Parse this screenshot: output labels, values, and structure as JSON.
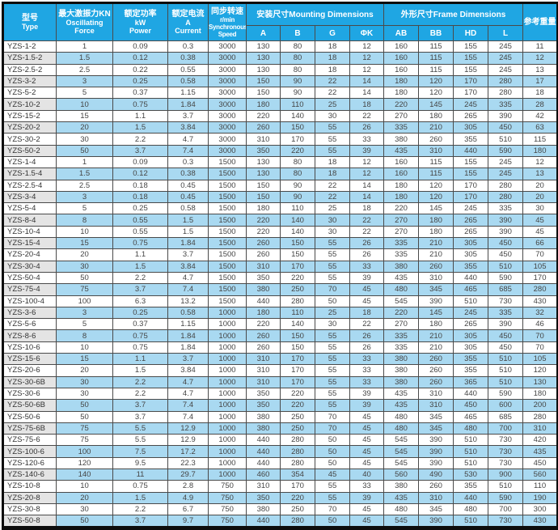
{
  "colors": {
    "header_blue": "#1FA6E3",
    "alt_row_blue": "#A9D9F1",
    "alt_type_gray": "#E4E4E4",
    "grid_line": "#4a4a4a"
  },
  "header": {
    "type": {
      "zh": "型号",
      "en": "Type"
    },
    "force": {
      "zh": "最大激振力KN",
      "en": "Oscillating",
      "en2": "Force"
    },
    "power": {
      "zh": "额定功率",
      "en": "kW",
      "en2": "Power"
    },
    "current": {
      "zh": "额定电流",
      "en": "A",
      "en2": "Current"
    },
    "speed": {
      "zh": "同步转速",
      "en": "r/min",
      "en2": "Synchronous",
      "en3": "Speed"
    },
    "mounting": "安装尺寸Mounting Dimensions",
    "frame": "外形尺寸Frame Dimensions",
    "weight": "参考重量",
    "dims": [
      "A",
      "B",
      "G",
      "ΦK",
      "AB",
      "BB",
      "HD",
      "L"
    ]
  },
  "rows": [
    [
      "YZS-1-2",
      "1",
      "0.09",
      "0.3",
      "3000",
      "130",
      "80",
      "18",
      "12",
      "160",
      "115",
      "155",
      "245",
      "11"
    ],
    [
      "YZS-1.5-2",
      "1.5",
      "0.12",
      "0.38",
      "3000",
      "130",
      "80",
      "18",
      "12",
      "160",
      "115",
      "155",
      "245",
      "12"
    ],
    [
      "YZS-2.5-2",
      "2.5",
      "0.22",
      "0.55",
      "3000",
      "130",
      "80",
      "18",
      "12",
      "160",
      "115",
      "155",
      "245",
      "13"
    ],
    [
      "YZS-3-2",
      "3",
      "0.25",
      "0.58",
      "3000",
      "150",
      "90",
      "22",
      "14",
      "180",
      "120",
      "170",
      "280",
      "17"
    ],
    [
      "YZS-5-2",
      "5",
      "0.37",
      "1.15",
      "3000",
      "150",
      "90",
      "22",
      "14",
      "180",
      "120",
      "170",
      "280",
      "18"
    ],
    [
      "YZS-10-2",
      "10",
      "0.75",
      "1.84",
      "3000",
      "180",
      "110",
      "25",
      "18",
      "220",
      "145",
      "245",
      "335",
      "28"
    ],
    [
      "YZS-15-2",
      "15",
      "1.1",
      "3.7",
      "3000",
      "220",
      "140",
      "30",
      "22",
      "270",
      "180",
      "265",
      "390",
      "42"
    ],
    [
      "YZS-20-2",
      "20",
      "1.5",
      "3.84",
      "3000",
      "260",
      "150",
      "55",
      "26",
      "335",
      "210",
      "305",
      "450",
      "63"
    ],
    [
      "YZS-30-2",
      "30",
      "2.2",
      "4.7",
      "3000",
      "310",
      "170",
      "55",
      "33",
      "380",
      "260",
      "355",
      "510",
      "115"
    ],
    [
      "YZS-50-2",
      "50",
      "3.7",
      "7.4",
      "3000",
      "350",
      "220",
      "55",
      "39",
      "435",
      "310",
      "440",
      "590",
      "180"
    ],
    [
      "YZS-1-4",
      "1",
      "0.09",
      "0.3",
      "1500",
      "130",
      "80",
      "18",
      "12",
      "160",
      "115",
      "155",
      "245",
      "12"
    ],
    [
      "YZS-1.5-4",
      "1.5",
      "0.12",
      "0.38",
      "1500",
      "130",
      "80",
      "18",
      "12",
      "160",
      "115",
      "155",
      "245",
      "13"
    ],
    [
      "YZS-2.5-4",
      "2.5",
      "0.18",
      "0.45",
      "1500",
      "150",
      "90",
      "22",
      "14",
      "180",
      "120",
      "170",
      "280",
      "20"
    ],
    [
      "YZS-3-4",
      "3",
      "0.18",
      "0.45",
      "1500",
      "150",
      "90",
      "22",
      "14",
      "180",
      "120",
      "170",
      "280",
      "20"
    ],
    [
      "YZS-5-4",
      "5",
      "0.25",
      "0.58",
      "1500",
      "180",
      "110",
      "25",
      "18",
      "220",
      "145",
      "245",
      "335",
      "30"
    ],
    [
      "YZS-8-4",
      "8",
      "0.55",
      "1.5",
      "1500",
      "220",
      "140",
      "30",
      "22",
      "270",
      "180",
      "265",
      "390",
      "45"
    ],
    [
      "YZS-10-4",
      "10",
      "0.55",
      "1.5",
      "1500",
      "220",
      "140",
      "30",
      "22",
      "270",
      "180",
      "265",
      "390",
      "45"
    ],
    [
      "YZS-15-4",
      "15",
      "0.75",
      "1.84",
      "1500",
      "260",
      "150",
      "55",
      "26",
      "335",
      "210",
      "305",
      "450",
      "66"
    ],
    [
      "YZS-20-4",
      "20",
      "1.1",
      "3.7",
      "1500",
      "260",
      "150",
      "55",
      "26",
      "335",
      "210",
      "305",
      "450",
      "70"
    ],
    [
      "YZS-30-4",
      "30",
      "1.5",
      "3.84",
      "1500",
      "310",
      "170",
      "55",
      "33",
      "380",
      "260",
      "355",
      "510",
      "105"
    ],
    [
      "YZS-50-4",
      "50",
      "2.2",
      "4.7",
      "1500",
      "350",
      "220",
      "55",
      "39",
      "435",
      "310",
      "440",
      "590",
      "170"
    ],
    [
      "YZS-75-4",
      "75",
      "3.7",
      "7.4",
      "1500",
      "380",
      "250",
      "70",
      "45",
      "480",
      "345",
      "465",
      "685",
      "280"
    ],
    [
      "YZS-100-4",
      "100",
      "6.3",
      "13.2",
      "1500",
      "440",
      "280",
      "50",
      "45",
      "545",
      "390",
      "510",
      "730",
      "430"
    ],
    [
      "YZS-3-6",
      "3",
      "0.25",
      "0.58",
      "1000",
      "180",
      "110",
      "25",
      "18",
      "220",
      "145",
      "245",
      "335",
      "32"
    ],
    [
      "YZS-5-6",
      "5",
      "0.37",
      "1.15",
      "1000",
      "220",
      "140",
      "30",
      "22",
      "270",
      "180",
      "265",
      "390",
      "46"
    ],
    [
      "YZS-8-6",
      "8",
      "0.75",
      "1.84",
      "1000",
      "260",
      "150",
      "55",
      "26",
      "335",
      "210",
      "305",
      "450",
      "70"
    ],
    [
      "YZS-10-6",
      "10",
      "0.75",
      "1.84",
      "1000",
      "260",
      "150",
      "55",
      "26",
      "335",
      "210",
      "305",
      "450",
      "70"
    ],
    [
      "YZS-15-6",
      "15",
      "1.1",
      "3.7",
      "1000",
      "310",
      "170",
      "55",
      "33",
      "380",
      "260",
      "355",
      "510",
      "105"
    ],
    [
      "YZS-20-6",
      "20",
      "1.5",
      "3.84",
      "1000",
      "310",
      "170",
      "55",
      "33",
      "380",
      "260",
      "355",
      "510",
      "120"
    ],
    [
      "YZS-30-6B",
      "30",
      "2.2",
      "4.7",
      "1000",
      "310",
      "170",
      "55",
      "33",
      "380",
      "260",
      "365",
      "510",
      "130"
    ],
    [
      "YZS-30-6",
      "30",
      "2.2",
      "4.7",
      "1000",
      "350",
      "220",
      "55",
      "39",
      "435",
      "310",
      "440",
      "590",
      "180"
    ],
    [
      "YZS-50-6B",
      "50",
      "3.7",
      "7.4",
      "1000",
      "350",
      "220",
      "55",
      "39",
      "435",
      "310",
      "450",
      "600",
      "200"
    ],
    [
      "YZS-50-6",
      "50",
      "3.7",
      "7.4",
      "1000",
      "380",
      "250",
      "70",
      "45",
      "480",
      "345",
      "465",
      "685",
      "280"
    ],
    [
      "YZS-75-6B",
      "75",
      "5.5",
      "12.9",
      "1000",
      "380",
      "250",
      "70",
      "45",
      "480",
      "345",
      "480",
      "700",
      "310"
    ],
    [
      "YZS-75-6",
      "75",
      "5.5",
      "12.9",
      "1000",
      "440",
      "280",
      "50",
      "45",
      "545",
      "390",
      "510",
      "730",
      "420"
    ],
    [
      "YZS-100-6",
      "100",
      "7.5",
      "17.2",
      "1000",
      "440",
      "280",
      "50",
      "45",
      "545",
      "390",
      "510",
      "730",
      "435"
    ],
    [
      "YZS-120-6",
      "120",
      "9.5",
      "22.3",
      "1000",
      "440",
      "280",
      "50",
      "45",
      "545",
      "390",
      "510",
      "730",
      "450"
    ],
    [
      "YZS-140-6",
      "140",
      "11",
      "29.7",
      "1000",
      "460",
      "354",
      "45",
      "40",
      "560",
      "490",
      "530",
      "900",
      "560"
    ],
    [
      "YZS-10-8",
      "10",
      "0.75",
      "2.8",
      "750",
      "310",
      "170",
      "55",
      "33",
      "380",
      "260",
      "355",
      "510",
      "110"
    ],
    [
      "YZS-20-8",
      "20",
      "1.5",
      "4.9",
      "750",
      "350",
      "220",
      "55",
      "39",
      "435",
      "310",
      "440",
      "590",
      "190"
    ],
    [
      "YZS-30-8",
      "30",
      "2.2",
      "6.7",
      "750",
      "380",
      "250",
      "70",
      "45",
      "480",
      "345",
      "480",
      "700",
      "300"
    ],
    [
      "YZS-50-8",
      "50",
      "3.7",
      "9.7",
      "750",
      "440",
      "280",
      "50",
      "45",
      "545",
      "390",
      "510",
      "730",
      "430"
    ]
  ]
}
